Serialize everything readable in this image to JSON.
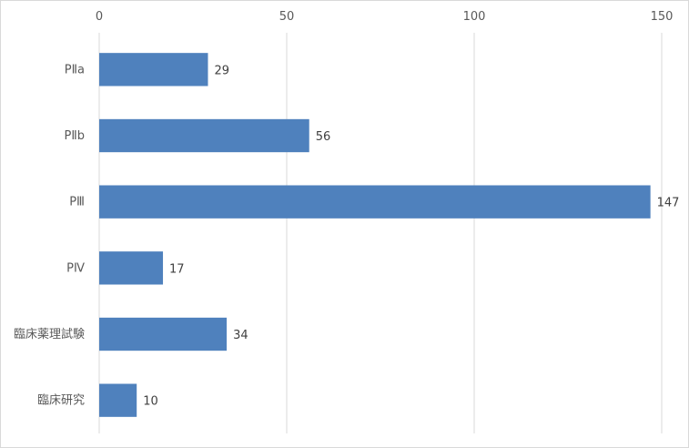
{
  "chart_data": {
    "type": "bar",
    "orientation": "horizontal",
    "categories": [
      "PⅡa",
      "PⅡb",
      "PⅢ",
      "PⅣ",
      "臨床薬理試験",
      "臨床研究"
    ],
    "values": [
      29,
      56,
      147,
      17,
      34,
      10
    ],
    "xlim": [
      0,
      150
    ],
    "xticks": [
      0,
      50,
      100,
      150
    ],
    "axis_position": "top",
    "grid": true,
    "bar_color": "#4f81bd",
    "grid_color": "#d9d9d9",
    "title": "",
    "xlabel": "",
    "ylabel": ""
  }
}
